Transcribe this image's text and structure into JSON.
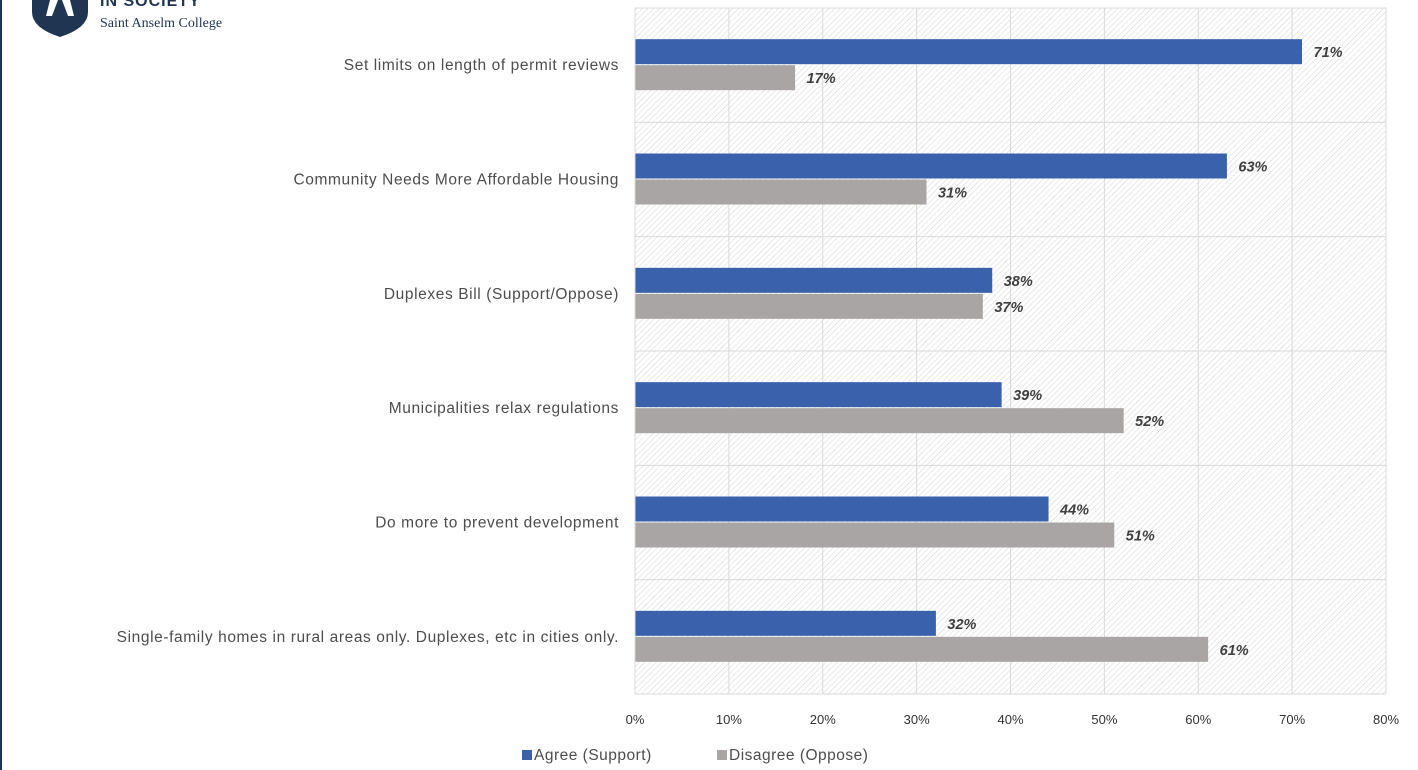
{
  "logo": {
    "line1": "IN SOCIETY",
    "line2": "Saint Anselm College"
  },
  "colors": {
    "agree": "#3a62ac",
    "disagree": "#aaa5a5",
    "brand": "#1f3552"
  },
  "chart_data": {
    "type": "bar",
    "orientation": "horizontal",
    "categories": [
      "Set limits on length of permit reviews",
      "Community Needs More Affordable Housing",
      "Duplexes Bill (Support/Oppose)",
      "Municipalities relax regulations",
      "Do more to prevent development",
      "Single-family homes in rural areas only. Duplexes, etc in cities only."
    ],
    "series": [
      {
        "name": "Agree (Support)",
        "values": [
          71,
          63,
          38,
          39,
          44,
          32
        ],
        "labels": [
          "71%",
          "63%",
          "38%",
          "39%",
          "44%",
          "32%"
        ]
      },
      {
        "name": "Disagree (Oppose)",
        "values": [
          17,
          31,
          37,
          52,
          51,
          61
        ],
        "labels": [
          "17%",
          "31%",
          "37%",
          "52%",
          "51%",
          "61%"
        ]
      }
    ],
    "xlim": [
      0,
      80
    ],
    "xticks": [
      "0%",
      "10%",
      "20%",
      "30%",
      "40%",
      "50%",
      "60%",
      "70%",
      "80%"
    ],
    "grid": true,
    "legend_position": "bottom",
    "title": "",
    "xlabel": "",
    "ylabel": ""
  }
}
